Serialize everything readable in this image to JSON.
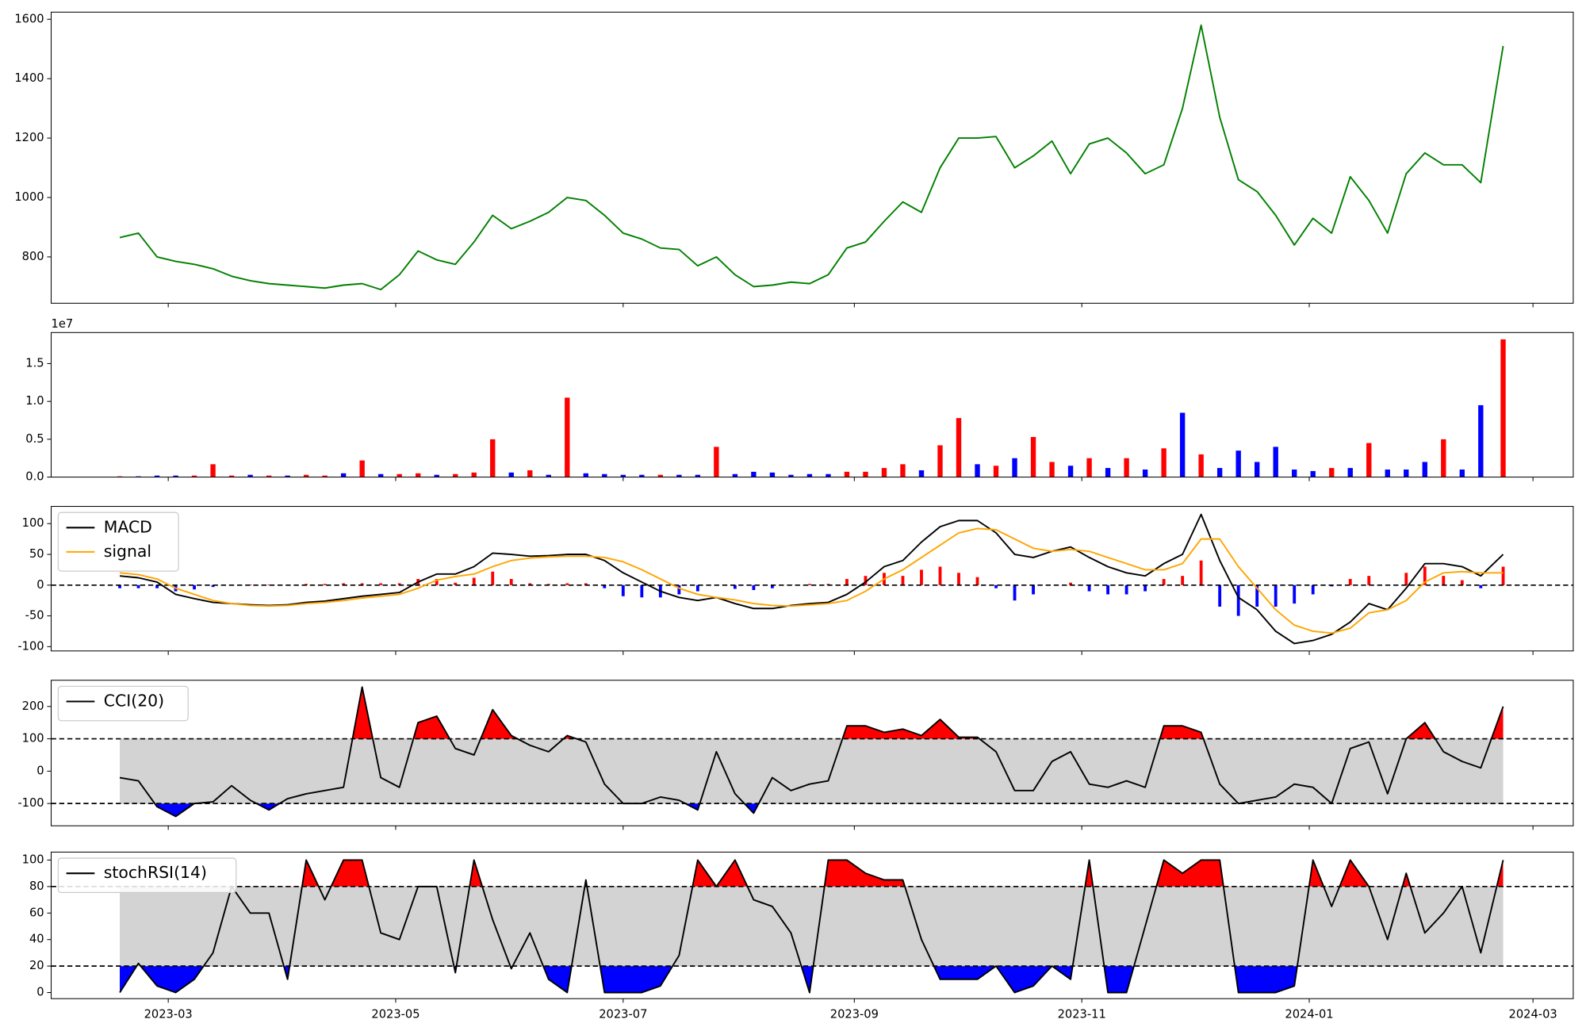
{
  "chart_data": [
    {
      "type": "line",
      "x": [
        46,
        51,
        56,
        61,
        66,
        71,
        76,
        81,
        86,
        91,
        96,
        101,
        106,
        111,
        116,
        121,
        126,
        131,
        136,
        141,
        146,
        151,
        156,
        161,
        166,
        171,
        176,
        181,
        186,
        191,
        196,
        201,
        206,
        211,
        216,
        221,
        226,
        231,
        236,
        241,
        246,
        251,
        256,
        261,
        266,
        271,
        276,
        281,
        286,
        291,
        296,
        301,
        306,
        311,
        316,
        321,
        326,
        331,
        336,
        341,
        346,
        351,
        356,
        361,
        366,
        371,
        376,
        381,
        386,
        391,
        396,
        401,
        406,
        411,
        417
      ],
      "xlim": [
        27.6,
        435.8
      ],
      "series": [
        {
          "color": "#008000",
          "values": [
            865,
            880,
            800,
            785,
            775,
            760,
            735,
            720,
            710,
            705,
            700,
            695,
            705,
            710,
            690,
            740,
            820,
            790,
            775,
            850,
            940,
            895,
            920,
            950,
            1000,
            990,
            940,
            880,
            860,
            830,
            825,
            770,
            800,
            740,
            700,
            705,
            715,
            710,
            740,
            830,
            850,
            920,
            985,
            950,
            1100,
            1200,
            1200,
            1205,
            1100,
            1140,
            1190,
            1080,
            1180,
            1200,
            1150,
            1080,
            1110,
            1300,
            1580,
            1270,
            1060,
            1020,
            940,
            840,
            930,
            880,
            1070,
            990,
            880,
            1080,
            1150,
            1110,
            1110,
            1050,
            1510
          ]
        }
      ],
      "ylim": [
        644,
        1624
      ],
      "yticks": [
        800,
        1000,
        1200,
        1400,
        1600
      ]
    },
    {
      "type": "bar",
      "values": [
        0.01,
        0.01,
        0.02,
        0.02,
        0.02,
        0.17,
        0.02,
        0.03,
        0.02,
        0.02,
        0.03,
        0.02,
        0.05,
        0.22,
        0.04,
        0.04,
        0.05,
        0.03,
        0.04,
        0.06,
        0.5,
        0.06,
        0.09,
        0.03,
        1.05,
        0.05,
        0.04,
        0.03,
        0.03,
        0.03,
        0.03,
        0.03,
        0.4,
        0.04,
        0.07,
        0.06,
        0.03,
        0.04,
        0.04,
        0.07,
        0.07,
        0.12,
        0.17,
        0.09,
        0.42,
        0.78,
        0.17,
        0.15,
        0.25,
        0.53,
        0.2,
        0.15,
        0.25,
        0.12,
        0.25,
        0.1,
        0.38,
        0.85,
        0.3,
        0.12,
        0.35,
        0.2,
        0.4,
        0.1,
        0.08,
        0.12,
        0.12,
        0.45,
        0.1,
        0.1,
        0.2,
        0.5,
        0.1,
        0.95,
        1.82
      ],
      "colors": [
        "#ff0000",
        "#0000ff",
        "#0000ff",
        "#0000ff",
        "#ff0000",
        "#ff0000",
        "#ff0000",
        "#0000ff",
        "#ff0000",
        "#0000ff",
        "#ff0000",
        "#ff0000",
        "#0000ff",
        "#ff0000",
        "#0000ff",
        "#ff0000",
        "#ff0000",
        "#0000ff",
        "#ff0000",
        "#ff0000",
        "#ff0000",
        "#0000ff",
        "#ff0000",
        "#0000ff",
        "#ff0000",
        "#0000ff",
        "#0000ff",
        "#0000ff",
        "#0000ff",
        "#ff0000",
        "#0000ff",
        "#0000ff",
        "#ff0000",
        "#0000ff",
        "#0000ff",
        "#0000ff",
        "#0000ff",
        "#0000ff",
        "#0000ff",
        "#ff0000",
        "#ff0000",
        "#ff0000",
        "#ff0000",
        "#0000ff",
        "#ff0000",
        "#ff0000",
        "#0000ff",
        "#ff0000",
        "#0000ff",
        "#ff0000",
        "#ff0000",
        "#0000ff",
        "#ff0000",
        "#0000ff",
        "#ff0000",
        "#0000ff",
        "#ff0000",
        "#0000ff",
        "#ff0000",
        "#0000ff",
        "#0000ff",
        "#0000ff",
        "#0000ff",
        "#0000ff",
        "#0000ff",
        "#ff0000",
        "#0000ff",
        "#ff0000",
        "#0000ff",
        "#0000ff",
        "#0000ff",
        "#ff0000",
        "#0000ff",
        "#0000ff",
        "#ff0000"
      ],
      "ylim": [
        0,
        1.91
      ],
      "yticks": [
        {
          "value": 0,
          "label": "0.0"
        },
        0.5,
        {
          "value": 1,
          "label": "1.0"
        },
        1.5
      ],
      "offset_label": "1e7"
    },
    {
      "type": "macd",
      "series": [
        {
          "name": "MACD",
          "color": "#000000",
          "values": [
            15,
            12,
            5,
            -15,
            -22,
            -28,
            -30,
            -32,
            -33,
            -32,
            -28,
            -26,
            -22,
            -18,
            -15,
            -12,
            5,
            18,
            18,
            30,
            52,
            50,
            47,
            48,
            50,
            50,
            40,
            20,
            5,
            -10,
            -20,
            -25,
            -20,
            -30,
            -38,
            -38,
            -33,
            -30,
            -28,
            -15,
            5,
            30,
            40,
            70,
            95,
            105,
            105,
            85,
            50,
            45,
            55,
            62,
            45,
            30,
            20,
            15,
            35,
            50,
            115,
            40,
            -20,
            -40,
            -75,
            -95,
            -90,
            -80,
            -60,
            -30,
            -40,
            -5,
            35,
            35,
            30,
            15,
            50
          ]
        },
        {
          "name": "signal",
          "color": "#ffa500",
          "values": [
            20,
            17,
            10,
            -5,
            -15,
            -25,
            -30,
            -33,
            -34,
            -33,
            -30,
            -28,
            -25,
            -21,
            -18,
            -15,
            -5,
            8,
            14,
            18,
            30,
            40,
            44,
            46,
            47,
            47,
            45,
            38,
            25,
            10,
            -5,
            -15,
            -20,
            -24,
            -30,
            -33,
            -34,
            -32,
            -30,
            -25,
            -10,
            10,
            25,
            45,
            65,
            85,
            92,
            90,
            75,
            60,
            55,
            58,
            55,
            45,
            35,
            25,
            25,
            35,
            75,
            75,
            30,
            -5,
            -40,
            -65,
            -75,
            -78,
            -70,
            -45,
            -40,
            -25,
            5,
            20,
            22,
            20,
            20
          ]
        }
      ],
      "histogram": {
        "values": [
          -5,
          -5,
          -5,
          -10,
          -7,
          -3,
          0,
          1,
          1,
          1,
          2,
          2,
          3,
          3,
          3,
          3,
          10,
          10,
          4,
          12,
          22,
          10,
          3,
          2,
          3,
          3,
          -5,
          -18,
          -20,
          -20,
          -15,
          -10,
          0,
          -6,
          -8,
          -5,
          1,
          2,
          2,
          10,
          15,
          20,
          15,
          25,
          30,
          20,
          13,
          -5,
          -25,
          -15,
          0,
          4,
          -10,
          -15,
          -15,
          -10,
          10,
          15,
          40,
          -35,
          -50,
          -35,
          -35,
          -30,
          -15,
          -2,
          10,
          15,
          0,
          20,
          30,
          15,
          8,
          -5,
          30
        ],
        "positive_color": "#ff0000",
        "negative_color": "#0000ff"
      },
      "hlines": [
        0
      ],
      "ylim": [
        -107,
        128
      ],
      "yticks": [
        -100,
        -50,
        0,
        50,
        100
      ],
      "legend": "upper left"
    },
    {
      "type": "oscillator",
      "series": [
        {
          "name": "CCI(20)",
          "color": "#000000",
          "values": [
            -20,
            -30,
            -110,
            -140,
            -100,
            -95,
            -45,
            -90,
            -120,
            -85,
            -70,
            -60,
            -50,
            260,
            -20,
            -50,
            150,
            170,
            70,
            50,
            190,
            110,
            80,
            60,
            110,
            90,
            -40,
            -100,
            -100,
            -80,
            -90,
            -120,
            60,
            -70,
            -130,
            -20,
            -60,
            -40,
            -30,
            140,
            140,
            120,
            130,
            110,
            160,
            105,
            105,
            60,
            -60,
            -60,
            30,
            60,
            -40,
            -50,
            -30,
            -50,
            140,
            140,
            120,
            -40,
            -100,
            -90,
            -80,
            -40,
            -50,
            -100,
            70,
            90,
            -70,
            100,
            150,
            60,
            30,
            10,
            200
          ]
        }
      ],
      "band": [
        -100,
        100
      ],
      "band_color": "#d3d3d3",
      "upper_color": "#ff0000",
      "lower_color": "#0000ff",
      "ylim": [
        -169,
        281
      ],
      "yticks": [
        -100,
        0,
        100,
        200
      ],
      "legend": "upper left"
    },
    {
      "type": "oscillator",
      "series": [
        {
          "name": "stochRSI(14)",
          "color": "#000000",
          "values": [
            0,
            22,
            5,
            0,
            10,
            30,
            80,
            60,
            60,
            10,
            100,
            70,
            100,
            100,
            45,
            40,
            80,
            80,
            15,
            100,
            55,
            18,
            45,
            10,
            0,
            85,
            0,
            0,
            0,
            5,
            28,
            100,
            80,
            100,
            70,
            65,
            45,
            0,
            100,
            100,
            90,
            85,
            85,
            40,
            10,
            10,
            10,
            20,
            0,
            5,
            20,
            10,
            100,
            0,
            0,
            50,
            100,
            90,
            100,
            100,
            0,
            0,
            0,
            5,
            100,
            65,
            100,
            80,
            40,
            90,
            45,
            60,
            80,
            30,
            100
          ]
        }
      ],
      "band": [
        20,
        80
      ],
      "band_color": "#d3d3d3",
      "upper_color": "#ff0000",
      "lower_color": "#0000ff",
      "ylim": [
        -4.6,
        106
      ],
      "yticks": [
        0,
        20,
        40,
        60,
        80,
        100
      ],
      "legend": "upper left",
      "xticks": [
        {
          "value": 59,
          "label": "2023-03"
        },
        {
          "value": 120,
          "label": "2023-05"
        },
        {
          "value": 181,
          "label": "2023-07"
        },
        {
          "value": 243,
          "label": "2023-09"
        },
        {
          "value": 304,
          "label": "2023-11"
        },
        {
          "value": 365,
          "label": "2024-01"
        },
        {
          "value": 425,
          "label": "2024-03"
        }
      ]
    }
  ]
}
